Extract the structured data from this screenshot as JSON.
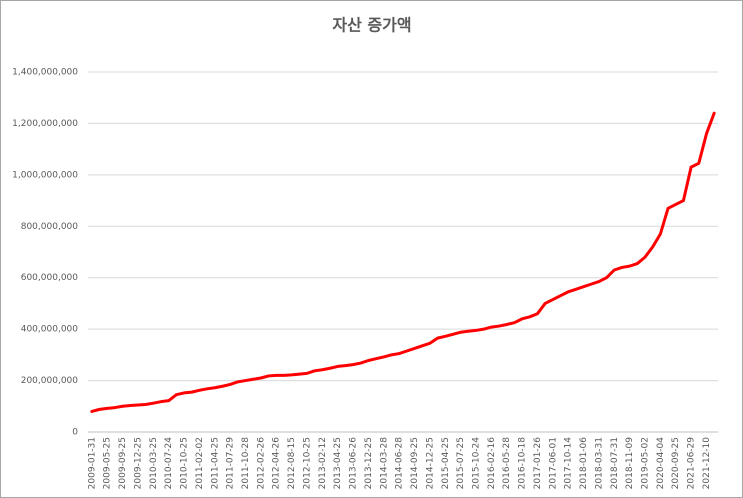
{
  "chart_data": {
    "type": "line",
    "title": "자산 증가액",
    "categories": [
      "2009-01-31",
      null,
      "2009-05-25",
      null,
      "2009-09-25",
      null,
      "2009-12-25",
      null,
      "2010-03-25",
      null,
      "2010-07-24",
      null,
      "2010-10-25",
      null,
      "2011-02-02",
      null,
      "2011-04-25",
      null,
      "2011-07-29",
      null,
      "2011-10-28",
      null,
      "2012-02-26",
      null,
      "2012-04-26",
      null,
      "2012-08-15",
      null,
      "2012-10-25",
      null,
      "2013-02-12",
      null,
      "2013-04-25",
      null,
      "2013-06-26",
      null,
      "2013-12-25",
      null,
      "2014-03-28",
      null,
      "2014-06-28",
      null,
      "2014-09-25",
      null,
      "2014-12-25",
      null,
      "2015-04-25",
      null,
      "2015-07-25",
      null,
      "2015-10-24",
      null,
      "2016-02-16",
      null,
      "2016-05-28",
      null,
      "2016-10-18",
      null,
      "2017-01-26",
      null,
      "2017-06-01",
      null,
      "2017-10-14",
      null,
      "2018-01-06",
      null,
      "2018-03-31",
      null,
      "2018-07-31",
      null,
      "2018-11-09",
      null,
      "2019-05-02",
      null,
      "2020-04-04",
      null,
      "2020-09-25",
      null,
      "2021-06-29",
      null,
      "2021-12-10",
      null
    ],
    "values": [
      80000000,
      88000000,
      92000000,
      95000000,
      100000000,
      103000000,
      105000000,
      107000000,
      112000000,
      118000000,
      122000000,
      145000000,
      152000000,
      155000000,
      162000000,
      168000000,
      172000000,
      178000000,
      185000000,
      195000000,
      200000000,
      205000000,
      210000000,
      218000000,
      220000000,
      220000000,
      222000000,
      225000000,
      228000000,
      238000000,
      242000000,
      248000000,
      255000000,
      258000000,
      262000000,
      268000000,
      278000000,
      285000000,
      292000000,
      300000000,
      305000000,
      315000000,
      325000000,
      335000000,
      345000000,
      365000000,
      372000000,
      380000000,
      388000000,
      392000000,
      395000000,
      400000000,
      408000000,
      412000000,
      418000000,
      425000000,
      440000000,
      448000000,
      460000000,
      500000000,
      515000000,
      530000000,
      545000000,
      555000000,
      565000000,
      575000000,
      585000000,
      600000000,
      630000000,
      640000000,
      645000000,
      655000000,
      680000000,
      720000000,
      770000000,
      870000000,
      885000000,
      900000000,
      1030000000,
      1045000000,
      1160000000,
      1240000000
    ],
    "color": "#ff0000",
    "ylim": [
      0,
      1400000000
    ],
    "yticks": [
      0,
      {
        "value": 200000000,
        "label": "200,000,000"
      },
      {
        "value": 400000000,
        "label": "400,000,000"
      },
      {
        "value": 600000000,
        "label": "600,000,000"
      },
      {
        "value": 800000000,
        "label": "800,000,000"
      },
      {
        "value": 1000000000,
        "label": "1,000,000,000"
      },
      {
        "value": 1200000000,
        "label": "1,200,000,000"
      },
      {
        "value": 1400000000,
        "label": "1,400,000,000"
      }
    ],
    "grid": true
  }
}
